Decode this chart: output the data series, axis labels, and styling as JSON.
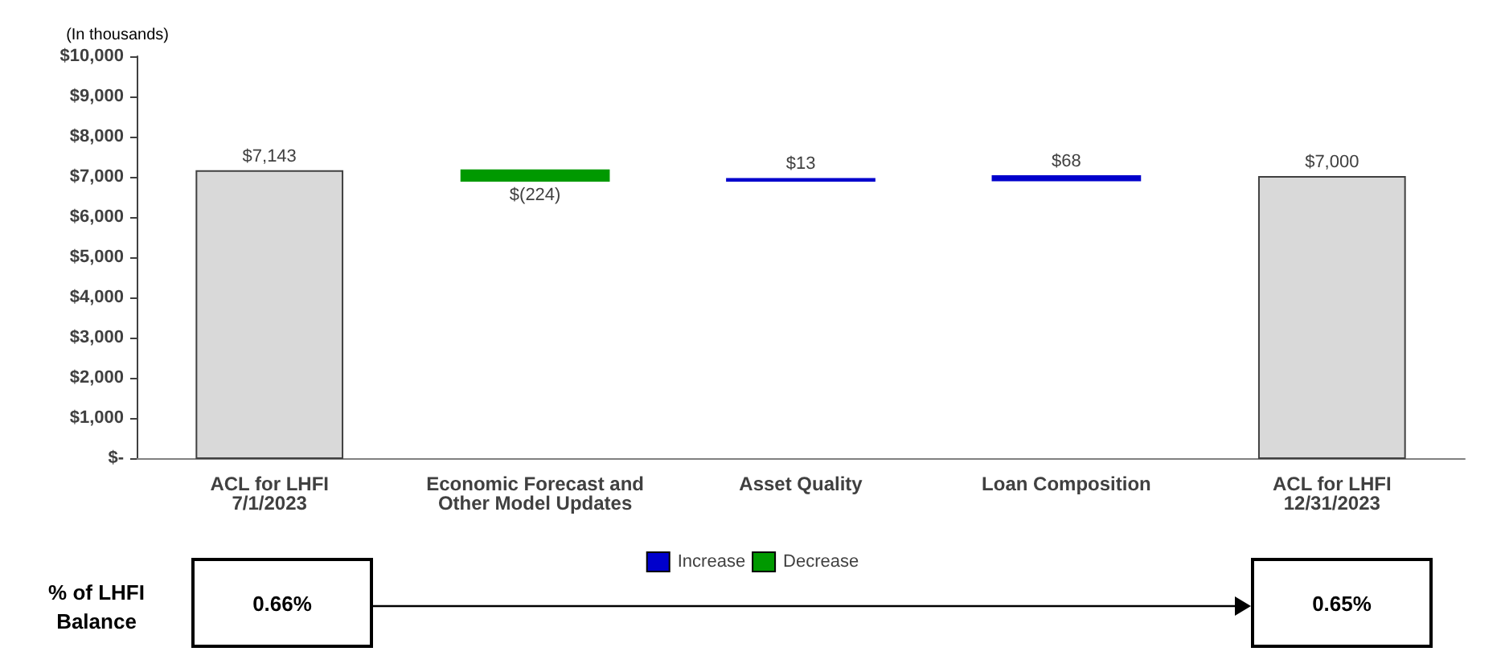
{
  "chart_data": {
    "type": "bar",
    "ylabel": "(In thousands)",
    "categories": [
      "ACL for LHFI\n7/1/2023",
      "Economic Forecast and\nOther Model Updates",
      "Asset Quality",
      "Loan Composition",
      "ACL for LHFI\n12/31/2023"
    ],
    "series": [
      {
        "color": "#d9d9d9",
        "base": [
          0,
          null,
          null,
          null,
          0
        ],
        "values": [
          7143,
          null,
          null,
          null,
          7000
        ],
        "value_labels": [
          "$7,143",
          null,
          null,
          null,
          "$7,000"
        ]
      },
      {
        "name": "Increase",
        "color": "#0000cc",
        "base": [
          null,
          null,
          6919,
          6932,
          null
        ],
        "values": [
          null,
          null,
          13,
          68,
          null
        ],
        "value_labels": [
          null,
          null,
          "$13",
          "$68",
          null
        ]
      },
      {
        "name": "Decrease",
        "color": "#009900",
        "base": [
          null,
          7143,
          null,
          null,
          null
        ],
        "values": [
          null,
          -224,
          null,
          null,
          null
        ],
        "value_labels": [
          null,
          "$(224)",
          null,
          null,
          null
        ]
      }
    ],
    "ylim": [
      0,
      10000
    ],
    "yticks": [
      {
        "value": 0,
        "label": "$-"
      },
      {
        "value": 1000,
        "label": "$1,000"
      },
      {
        "value": 2000,
        "label": "$2,000"
      },
      {
        "value": 3000,
        "label": "$3,000"
      },
      {
        "value": 4000,
        "label": "$4,000"
      },
      {
        "value": 5000,
        "label": "$5,000"
      },
      {
        "value": 6000,
        "label": "$6,000"
      },
      {
        "value": 7000,
        "label": "$7,000"
      },
      {
        "value": 8000,
        "label": "$8,000"
      },
      {
        "value": 9000,
        "label": "$9,000"
      },
      {
        "value": 10000,
        "label": "$10,000"
      }
    ],
    "grid": false,
    "legend": "bottom",
    "annotations": [
      "% of LHFI\nBalance",
      "0.66%",
      "0.65%"
    ]
  }
}
